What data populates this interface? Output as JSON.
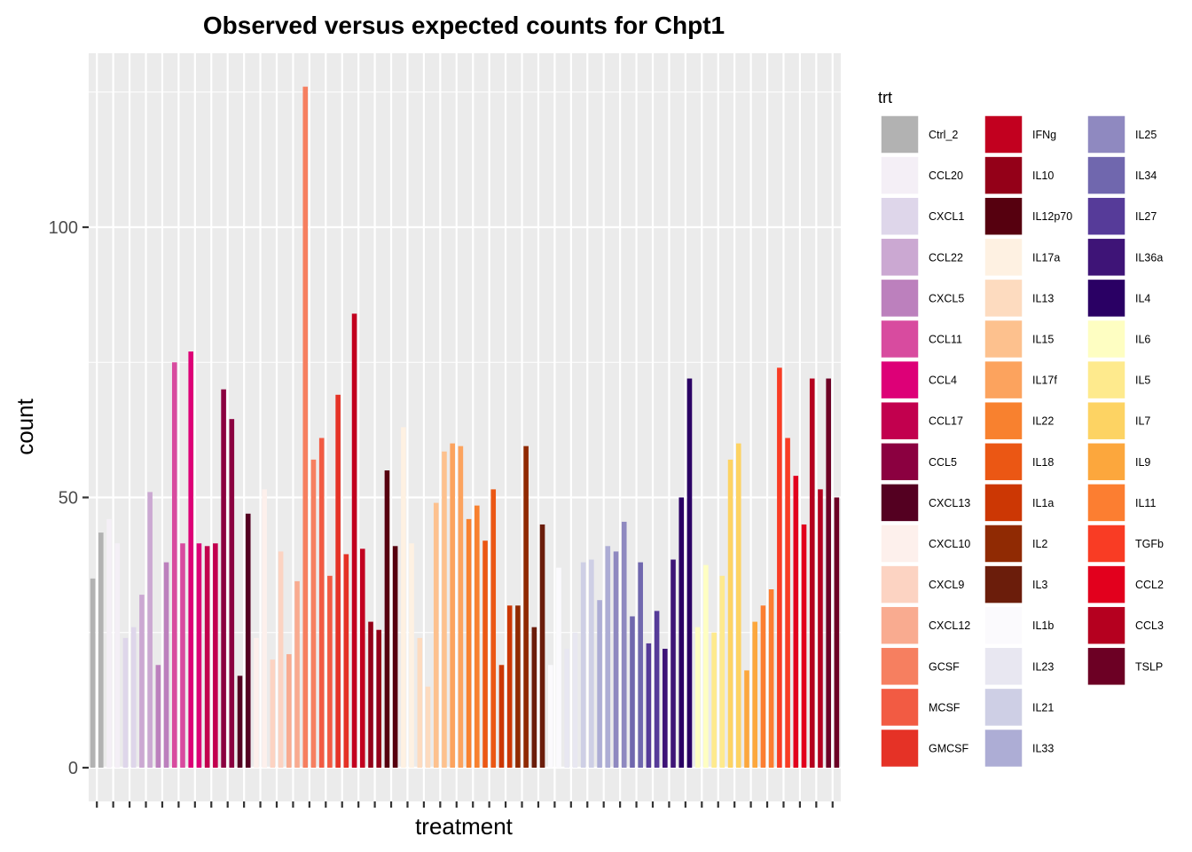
{
  "chart_data": {
    "type": "bar",
    "title": "Observed versus expected counts for Chpt1",
    "xlabel": "treatment",
    "ylabel": "count",
    "ylim": [
      -6,
      127
    ],
    "yticks": [
      0,
      50,
      100
    ],
    "grid": true,
    "legend": {
      "title": "trt",
      "placement": "right",
      "columns": 3
    },
    "series": [
      {
        "name": "Ctrl_2",
        "color": "#B2B2B2",
        "values": [
          35,
          43.5
        ]
      },
      {
        "name": "CCL20",
        "color": "#F4EFF6",
        "values": [
          46,
          41.5
        ]
      },
      {
        "name": "CXCL1",
        "color": "#DED6EA",
        "values": [
          24,
          26
        ]
      },
      {
        "name": "CCL22",
        "color": "#CBA8D2",
        "values": [
          32,
          51
        ]
      },
      {
        "name": "CXCL5",
        "color": "#BC80BD",
        "values": [
          19,
          38
        ]
      },
      {
        "name": "CCL11",
        "color": "#D84B9F",
        "values": [
          75,
          41.5
        ]
      },
      {
        "name": "CCL4",
        "color": "#DD0077",
        "values": [
          77,
          41.5
        ]
      },
      {
        "name": "CCL17",
        "color": "#C2004E",
        "values": [
          41,
          41.5
        ]
      },
      {
        "name": "CCL5",
        "color": "#8B0040",
        "values": [
          70,
          64.5
        ]
      },
      {
        "name": "CXCL13",
        "color": "#540021",
        "values": [
          17,
          47
        ]
      },
      {
        "name": "CXCL10",
        "color": "#FDF0EC",
        "values": [
          24,
          51.5
        ]
      },
      {
        "name": "CXCL9",
        "color": "#FCD3C2",
        "values": [
          20,
          40
        ]
      },
      {
        "name": "CXCL12",
        "color": "#F9AB90",
        "values": [
          21,
          34.5
        ]
      },
      {
        "name": "GCSF",
        "color": "#F67F60",
        "values": [
          126,
          57
        ]
      },
      {
        "name": "MCSF",
        "color": "#F25B43",
        "values": [
          61,
          35.5
        ]
      },
      {
        "name": "GMCSF",
        "color": "#E53226",
        "values": [
          69,
          39.5
        ]
      },
      {
        "name": "IFNg",
        "color": "#C2001F",
        "values": [
          84,
          40.5
        ]
      },
      {
        "name": "IL10",
        "color": "#940018",
        "values": [
          27,
          25.5
        ]
      },
      {
        "name": "IL12p70",
        "color": "#56000F",
        "values": [
          55,
          41
        ]
      },
      {
        "name": "IL17a",
        "color": "#FEF1E2",
        "values": [
          63,
          41.5
        ]
      },
      {
        "name": "IL13",
        "color": "#FDDBBF",
        "values": [
          24,
          15
        ]
      },
      {
        "name": "IL15",
        "color": "#FDC18E",
        "values": [
          49,
          58.5
        ]
      },
      {
        "name": "IL17f",
        "color": "#FCA35E",
        "values": [
          60,
          59.5
        ]
      },
      {
        "name": "IL22",
        "color": "#F8812F",
        "values": [
          46,
          48.5
        ]
      },
      {
        "name": "IL18",
        "color": "#EB5714",
        "values": [
          42,
          51.5
        ]
      },
      {
        "name": "IL1a",
        "color": "#CC3704",
        "values": [
          19,
          30
        ]
      },
      {
        "name": "IL2",
        "color": "#902A03",
        "values": [
          30,
          59.5
        ]
      },
      {
        "name": "IL3",
        "color": "#6B1D0B",
        "values": [
          26,
          45
        ]
      },
      {
        "name": "IL1b",
        "color": "#FBFAFD",
        "values": [
          19,
          37
        ]
      },
      {
        "name": "IL23",
        "color": "#E8E7F1",
        "values": [
          22,
          25
        ]
      },
      {
        "name": "IL21",
        "color": "#CECFE5",
        "values": [
          38,
          38.5
        ]
      },
      {
        "name": "IL33",
        "color": "#ADADD5",
        "values": [
          31,
          41
        ]
      },
      {
        "name": "IL25",
        "color": "#8F89C0",
        "values": [
          40,
          45.5
        ]
      },
      {
        "name": "IL34",
        "color": "#7067AE",
        "values": [
          28,
          38
        ]
      },
      {
        "name": "IL27",
        "color": "#563B99",
        "values": [
          23,
          29
        ]
      },
      {
        "name": "IL36a",
        "color": "#3E1477",
        "values": [
          22,
          38.5
        ]
      },
      {
        "name": "IL4",
        "color": "#2A0064",
        "values": [
          50,
          72
        ]
      },
      {
        "name": "IL6",
        "color": "#FEFEC2",
        "values": [
          26,
          37.5
        ]
      },
      {
        "name": "IL5",
        "color": "#FEEA8D",
        "values": [
          25,
          35.5
        ]
      },
      {
        "name": "IL7",
        "color": "#FDD363",
        "values": [
          57,
          60
        ]
      },
      {
        "name": "IL9",
        "color": "#FCA73D",
        "values": [
          18,
          27
        ]
      },
      {
        "name": "IL11",
        "color": "#FC7E31",
        "values": [
          30,
          33
        ]
      },
      {
        "name": "TGFb",
        "color": "#F93C24",
        "values": [
          74,
          61
        ]
      },
      {
        "name": "CCL2",
        "color": "#E2001D",
        "values": [
          54,
          45
        ]
      },
      {
        "name": "CCL3",
        "color": "#B5001F",
        "values": [
          72,
          51.5
        ]
      },
      {
        "name": "TSLP",
        "color": "#6C0024",
        "values": [
          72,
          50
        ]
      }
    ]
  }
}
